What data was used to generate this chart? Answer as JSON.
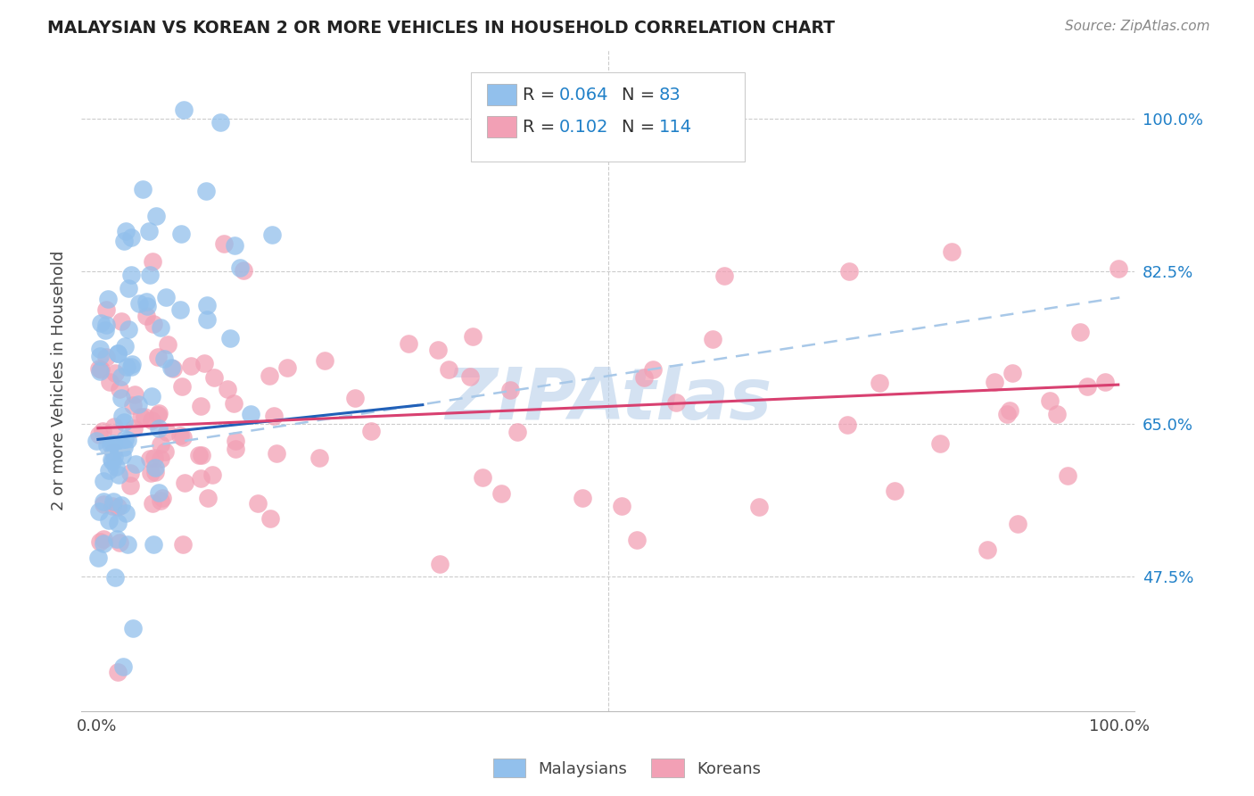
{
  "title": "MALAYSIAN VS KOREAN 2 OR MORE VEHICLES IN HOUSEHOLD CORRELATION CHART",
  "source": "Source: ZipAtlas.com",
  "ylabel": "2 or more Vehicles in Household",
  "malaysian_R": 0.064,
  "malaysian_N": 83,
  "korean_R": 0.102,
  "korean_N": 114,
  "blue_scatter_color": "#92C0EC",
  "pink_scatter_color": "#F2A0B5",
  "blue_line_color": "#2060B8",
  "pink_line_color": "#D84070",
  "dashed_line_color": "#A8C8E8",
  "watermark_color": "#B8D0EA",
  "ytick_color": "#2080C8",
  "xlim": [
    -0.015,
    1.015
  ],
  "ylim": [
    0.32,
    1.08
  ],
  "ytick_positions": [
    0.475,
    0.65,
    0.825,
    1.0
  ],
  "ytick_labels": [
    "47.5%",
    "65.0%",
    "82.5%",
    "100.0%"
  ],
  "blue_line_x0": 0.0,
  "blue_line_y0": 0.632,
  "blue_line_x1": 0.32,
  "blue_line_y1": 0.672,
  "pink_line_x0": 0.0,
  "pink_line_y0": 0.645,
  "pink_line_x1": 1.0,
  "pink_line_y1": 0.695,
  "dash_line_x0": 0.0,
  "dash_line_y0": 0.615,
  "dash_line_x1": 1.0,
  "dash_line_y1": 0.795
}
